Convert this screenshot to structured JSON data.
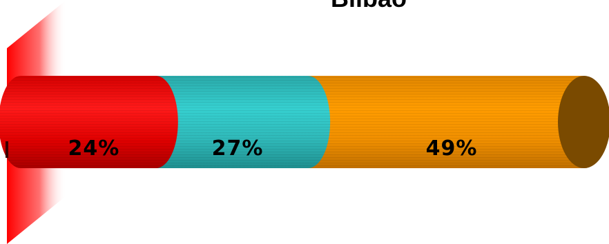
{
  "chart_data": {
    "type": "bar",
    "subtype": "stacked-100-cylinder",
    "title": "Bilbao",
    "grid": false,
    "legend": "none",
    "categories": [
      "Bilbao"
    ],
    "series": [
      {
        "value": 24,
        "label": "24%",
        "color": "#ff0000",
        "dark": "#b80000"
      },
      {
        "value": 27,
        "label": "27%",
        "color": "#33cccc",
        "dark": "#1f8f8f"
      },
      {
        "value": 49,
        "label": "49%",
        "color": "#ff9900",
        "dark": "#7a4a00"
      }
    ]
  },
  "colors": {
    "wall": "#ff0000",
    "background": "#ffffff"
  }
}
